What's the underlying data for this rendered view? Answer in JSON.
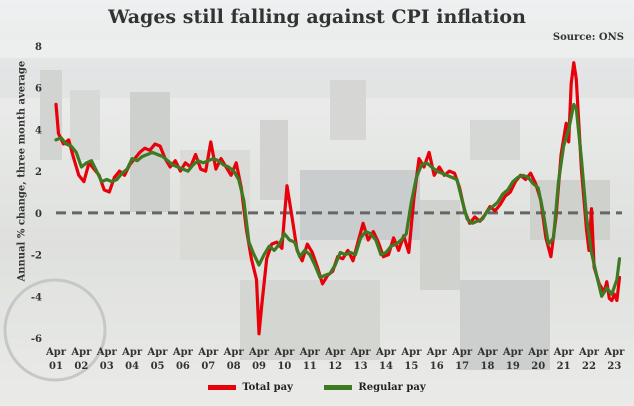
{
  "colors": {
    "total": "#e8000b",
    "regular": "#3d7a22",
    "zero": "#666666"
  },
  "chart_data": {
    "type": "line",
    "title": "Wages still falling against CPI inflation",
    "source": "Source: ONS",
    "ylabel": "Annual % change, three month average",
    "xlabel": "",
    "ylim": [
      -6,
      8
    ],
    "xlim": [
      2001,
      2023.3
    ],
    "y_ticks": [
      "8",
      "6",
      "4",
      "2",
      "0",
      "-2",
      "-4",
      "-6"
    ],
    "x_ticks": [
      {
        "top": "Apr",
        "bottom": "01"
      },
      {
        "top": "Apr",
        "bottom": "02"
      },
      {
        "top": "Apr",
        "bottom": "03"
      },
      {
        "top": "Apr",
        "bottom": "04"
      },
      {
        "top": "Apr",
        "bottom": "05"
      },
      {
        "top": "Apr",
        "bottom": "06"
      },
      {
        "top": "Apr",
        "bottom": "07"
      },
      {
        "top": "Apr",
        "bottom": "08"
      },
      {
        "top": "Apr",
        "bottom": "09"
      },
      {
        "top": "Apr",
        "bottom": "10"
      },
      {
        "top": "Apr",
        "bottom": "11"
      },
      {
        "top": "Apr",
        "bottom": "12"
      },
      {
        "top": "Apr",
        "bottom": "13"
      },
      {
        "top": "Apr",
        "bottom": "14"
      },
      {
        "top": "Apr",
        "bottom": "15"
      },
      {
        "top": "Apr",
        "bottom": "16"
      },
      {
        "top": "Apr",
        "bottom": "17"
      },
      {
        "top": "Apr",
        "bottom": "18"
      },
      {
        "top": "Apr",
        "bottom": "19"
      },
      {
        "top": "Apr",
        "bottom": "20"
      },
      {
        "top": "Apr",
        "bottom": "21"
      },
      {
        "top": "Apr",
        "bottom": "22"
      },
      {
        "top": "Apr",
        "bottom": "23"
      }
    ],
    "legend_position": "bottom-center",
    "series": [
      {
        "name": "Total pay",
        "points": [
          [
            2001.0,
            5.2
          ],
          [
            2001.1,
            3.8
          ],
          [
            2001.3,
            3.3
          ],
          [
            2001.5,
            3.5
          ],
          [
            2001.7,
            2.6
          ],
          [
            2001.9,
            1.8
          ],
          [
            2002.1,
            1.5
          ],
          [
            2002.3,
            2.4
          ],
          [
            2002.5,
            2.1
          ],
          [
            2002.7,
            1.8
          ],
          [
            2002.9,
            1.1
          ],
          [
            2003.1,
            1.0
          ],
          [
            2003.3,
            1.7
          ],
          [
            2003.5,
            2.0
          ],
          [
            2003.7,
            1.8
          ],
          [
            2003.9,
            2.3
          ],
          [
            2004.1,
            2.6
          ],
          [
            2004.3,
            2.9
          ],
          [
            2004.5,
            3.1
          ],
          [
            2004.7,
            3.0
          ],
          [
            2004.9,
            3.3
          ],
          [
            2005.1,
            3.2
          ],
          [
            2005.3,
            2.6
          ],
          [
            2005.5,
            2.2
          ],
          [
            2005.7,
            2.5
          ],
          [
            2005.9,
            2.0
          ],
          [
            2006.1,
            2.4
          ],
          [
            2006.3,
            2.2
          ],
          [
            2006.5,
            2.8
          ],
          [
            2006.7,
            2.1
          ],
          [
            2006.9,
            2.0
          ],
          [
            2007.1,
            3.4
          ],
          [
            2007.3,
            2.1
          ],
          [
            2007.5,
            2.6
          ],
          [
            2007.7,
            2.2
          ],
          [
            2007.9,
            1.8
          ],
          [
            2008.1,
            2.4
          ],
          [
            2008.3,
            1.2
          ],
          [
            2008.5,
            -0.8
          ],
          [
            2008.7,
            -2.2
          ],
          [
            2008.9,
            -3.2
          ],
          [
            2009.0,
            -5.8
          ],
          [
            2009.1,
            -4.5
          ],
          [
            2009.3,
            -2.2
          ],
          [
            2009.5,
            -1.5
          ],
          [
            2009.7,
            -1.4
          ],
          [
            2009.9,
            -1.7
          ],
          [
            2010.0,
            -0.2
          ],
          [
            2010.1,
            1.3
          ],
          [
            2010.3,
            -0.2
          ],
          [
            2010.5,
            -1.8
          ],
          [
            2010.7,
            -2.3
          ],
          [
            2010.9,
            -1.5
          ],
          [
            2011.1,
            -1.9
          ],
          [
            2011.3,
            -2.6
          ],
          [
            2011.5,
            -3.4
          ],
          [
            2011.7,
            -3.0
          ],
          [
            2011.9,
            -2.8
          ],
          [
            2012.1,
            -2.1
          ],
          [
            2012.3,
            -2.2
          ],
          [
            2012.5,
            -1.8
          ],
          [
            2012.7,
            -2.3
          ],
          [
            2012.9,
            -1.4
          ],
          [
            2013.1,
            -0.5
          ],
          [
            2013.3,
            -1.3
          ],
          [
            2013.5,
            -0.9
          ],
          [
            2013.7,
            -1.4
          ],
          [
            2013.9,
            -2.1
          ],
          [
            2014.1,
            -2.0
          ],
          [
            2014.3,
            -1.2
          ],
          [
            2014.5,
            -1.8
          ],
          [
            2014.7,
            -1.1
          ],
          [
            2014.9,
            -1.9
          ],
          [
            2015.1,
            0.7
          ],
          [
            2015.3,
            2.6
          ],
          [
            2015.5,
            2.2
          ],
          [
            2015.7,
            2.9
          ],
          [
            2015.9,
            1.8
          ],
          [
            2016.1,
            2.2
          ],
          [
            2016.3,
            1.8
          ],
          [
            2016.5,
            2.0
          ],
          [
            2016.7,
            1.9
          ],
          [
            2016.9,
            1.2
          ],
          [
            2017.1,
            0.1
          ],
          [
            2017.3,
            -0.5
          ],
          [
            2017.5,
            -0.2
          ],
          [
            2017.7,
            -0.4
          ],
          [
            2017.9,
            -0.1
          ],
          [
            2018.1,
            0.3
          ],
          [
            2018.3,
            0.1
          ],
          [
            2018.5,
            0.4
          ],
          [
            2018.7,
            0.8
          ],
          [
            2018.9,
            1.0
          ],
          [
            2019.1,
            1.5
          ],
          [
            2019.3,
            1.8
          ],
          [
            2019.5,
            1.6
          ],
          [
            2019.7,
            1.9
          ],
          [
            2019.9,
            1.4
          ],
          [
            2020.1,
            0.6
          ],
          [
            2020.3,
            -1.2
          ],
          [
            2020.5,
            -2.1
          ],
          [
            2020.7,
            -0.2
          ],
          [
            2020.9,
            2.8
          ],
          [
            2021.1,
            4.3
          ],
          [
            2021.2,
            3.4
          ],
          [
            2021.3,
            6.2
          ],
          [
            2021.4,
            7.2
          ],
          [
            2021.5,
            6.4
          ],
          [
            2021.7,
            2.1
          ],
          [
            2021.9,
            -0.8
          ],
          [
            2022.0,
            -1.8
          ],
          [
            2022.1,
            0.2
          ],
          [
            2022.2,
            -2.6
          ],
          [
            2022.4,
            -3.4
          ],
          [
            2022.6,
            -3.8
          ],
          [
            2022.7,
            -3.3
          ],
          [
            2022.8,
            -4.1
          ],
          [
            2022.9,
            -4.2
          ],
          [
            2023.0,
            -3.9
          ],
          [
            2023.1,
            -4.2
          ],
          [
            2023.2,
            -3.1
          ]
        ]
      },
      {
        "name": "Regular pay",
        "points": [
          [
            2001.0,
            3.5
          ],
          [
            2001.2,
            3.6
          ],
          [
            2001.4,
            3.3
          ],
          [
            2001.6,
            3.2
          ],
          [
            2001.8,
            2.9
          ],
          [
            2002.0,
            2.2
          ],
          [
            2002.2,
            2.4
          ],
          [
            2002.4,
            2.5
          ],
          [
            2002.6,
            2.0
          ],
          [
            2002.8,
            1.5
          ],
          [
            2003.0,
            1.6
          ],
          [
            2003.2,
            1.5
          ],
          [
            2003.4,
            1.6
          ],
          [
            2003.6,
            1.9
          ],
          [
            2003.8,
            2.1
          ],
          [
            2004.0,
            2.6
          ],
          [
            2004.2,
            2.5
          ],
          [
            2004.4,
            2.7
          ],
          [
            2004.6,
            2.8
          ],
          [
            2004.8,
            2.9
          ],
          [
            2005.0,
            2.8
          ],
          [
            2005.2,
            2.7
          ],
          [
            2005.4,
            2.5
          ],
          [
            2005.6,
            2.3
          ],
          [
            2005.8,
            2.2
          ],
          [
            2006.0,
            2.1
          ],
          [
            2006.2,
            2.0
          ],
          [
            2006.4,
            2.3
          ],
          [
            2006.6,
            2.5
          ],
          [
            2006.8,
            2.4
          ],
          [
            2007.0,
            2.5
          ],
          [
            2007.2,
            2.6
          ],
          [
            2007.4,
            2.5
          ],
          [
            2007.6,
            2.3
          ],
          [
            2007.8,
            2.2
          ],
          [
            2008.0,
            2.0
          ],
          [
            2008.2,
            1.6
          ],
          [
            2008.4,
            0.6
          ],
          [
            2008.6,
            -1.4
          ],
          [
            2008.8,
            -2.0
          ],
          [
            2009.0,
            -2.5
          ],
          [
            2009.2,
            -2.0
          ],
          [
            2009.4,
            -1.6
          ],
          [
            2009.6,
            -1.8
          ],
          [
            2009.8,
            -1.5
          ],
          [
            2010.0,
            -1.0
          ],
          [
            2010.2,
            -1.3
          ],
          [
            2010.4,
            -1.4
          ],
          [
            2010.6,
            -2.1
          ],
          [
            2010.8,
            -1.8
          ],
          [
            2011.0,
            -2.0
          ],
          [
            2011.2,
            -2.5
          ],
          [
            2011.4,
            -3.1
          ],
          [
            2011.6,
            -3.0
          ],
          [
            2011.8,
            -2.9
          ],
          [
            2012.0,
            -2.5
          ],
          [
            2012.2,
            -1.9
          ],
          [
            2012.4,
            -2.0
          ],
          [
            2012.6,
            -1.9
          ],
          [
            2012.8,
            -2.0
          ],
          [
            2013.0,
            -1.2
          ],
          [
            2013.2,
            -0.9
          ],
          [
            2013.4,
            -1.0
          ],
          [
            2013.6,
            -1.3
          ],
          [
            2013.8,
            -2.0
          ],
          [
            2014.0,
            -1.9
          ],
          [
            2014.2,
            -1.6
          ],
          [
            2014.4,
            -1.5
          ],
          [
            2014.6,
            -1.3
          ],
          [
            2014.8,
            -1.0
          ],
          [
            2015.0,
            0.5
          ],
          [
            2015.2,
            1.7
          ],
          [
            2015.4,
            2.3
          ],
          [
            2015.6,
            2.4
          ],
          [
            2015.8,
            2.2
          ],
          [
            2016.0,
            2.0
          ],
          [
            2016.2,
            1.9
          ],
          [
            2016.4,
            1.8
          ],
          [
            2016.6,
            1.7
          ],
          [
            2016.8,
            1.6
          ],
          [
            2017.0,
            0.6
          ],
          [
            2017.2,
            -0.3
          ],
          [
            2017.4,
            -0.5
          ],
          [
            2017.6,
            -0.4
          ],
          [
            2017.8,
            -0.3
          ],
          [
            2018.0,
            0.1
          ],
          [
            2018.2,
            0.3
          ],
          [
            2018.4,
            0.5
          ],
          [
            2018.6,
            0.9
          ],
          [
            2018.8,
            1.1
          ],
          [
            2019.0,
            1.5
          ],
          [
            2019.2,
            1.7
          ],
          [
            2019.4,
            1.8
          ],
          [
            2019.6,
            1.7
          ],
          [
            2019.8,
            1.4
          ],
          [
            2020.0,
            1.2
          ],
          [
            2020.2,
            0.0
          ],
          [
            2020.4,
            -1.5
          ],
          [
            2020.6,
            -1.2
          ],
          [
            2020.8,
            1.5
          ],
          [
            2021.0,
            3.2
          ],
          [
            2021.2,
            4.0
          ],
          [
            2021.4,
            5.2
          ],
          [
            2021.5,
            5.0
          ],
          [
            2021.7,
            2.6
          ],
          [
            2021.9,
            -0.2
          ],
          [
            2022.1,
            -1.9
          ],
          [
            2022.3,
            -3.0
          ],
          [
            2022.5,
            -4.0
          ],
          [
            2022.7,
            -3.6
          ],
          [
            2022.9,
            -3.9
          ],
          [
            2023.1,
            -3.2
          ],
          [
            2023.2,
            -2.2
          ]
        ]
      }
    ]
  }
}
